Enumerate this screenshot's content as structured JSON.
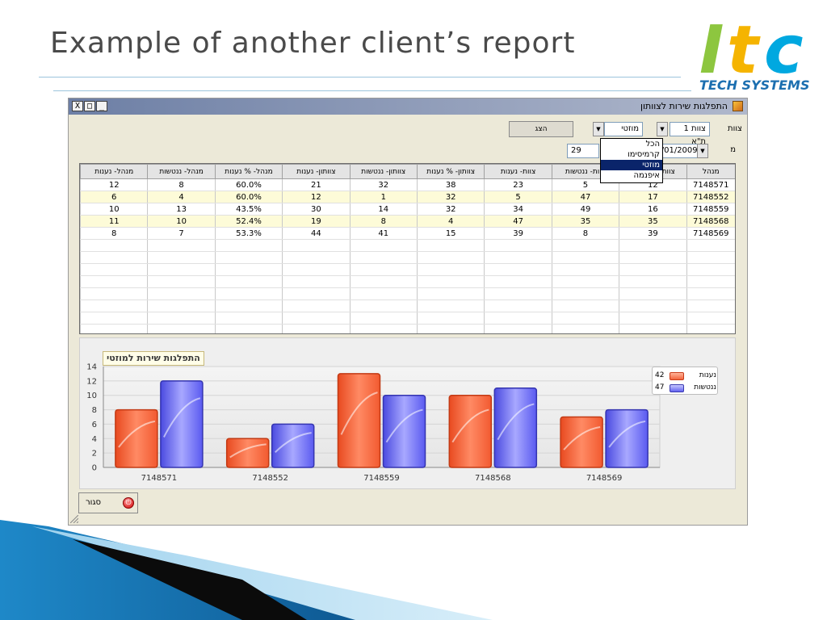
{
  "slide": {
    "title": "Example of another client’s report",
    "logo_text": "Itc",
    "logo_tagline": "TECH SYSTEMS"
  },
  "window": {
    "title": "התפלגות שירות לצוותון",
    "controls": {
      "close": "X",
      "maximize": "□",
      "minimize": "_"
    }
  },
  "filters": {
    "team_label": "צוות",
    "team_value": "צוות 1 ת\"א",
    "sub_value": "מוזטי",
    "show_button": "הצג",
    "month_label": "מ",
    "date_from": "29/01/2009",
    "date_to_partial": "29",
    "dropdown_options": [
      {
        "label": "הכל",
        "selected": false
      },
      {
        "label": "קרמיסימו",
        "selected": false
      },
      {
        "label": "מוזטי",
        "selected": true
      },
      {
        "label": "איפנמה",
        "selected": false
      }
    ]
  },
  "table": {
    "columns": [
      "מנהל",
      "צוות- % נענות",
      "צוות- ננטשות",
      "צוות- נענות",
      "צוותון- % נענות",
      "צוותון- ננטשות",
      "צוותון- נענות",
      "מנהל- % נענות",
      "מנהל- ננטשות",
      "מנהל- נענות"
    ],
    "rows": [
      [
        "7148571",
        "12",
        "5",
        "23",
        "38",
        "32",
        "21",
        "60.0%",
        "8",
        "12"
      ],
      [
        "7148552",
        "17",
        "47",
        "5",
        "32",
        "1",
        "12",
        "60.0%",
        "4",
        "6"
      ],
      [
        "7148559",
        "16",
        "49",
        "34",
        "32",
        "14",
        "30",
        "43.5%",
        "13",
        "10"
      ],
      [
        "7148568",
        "35",
        "35",
        "47",
        "4",
        "8",
        "19",
        "52.4%",
        "10",
        "11"
      ],
      [
        "7148569",
        "39",
        "8",
        "39",
        "15",
        "41",
        "44",
        "53.3%",
        "7",
        "8"
      ]
    ]
  },
  "chart_data": {
    "type": "bar",
    "title": "התפלגות שירות למוזטי",
    "categories": [
      "7148571",
      "7148552",
      "7148559",
      "7148568",
      "7148569"
    ],
    "series": [
      {
        "name": "נענות",
        "values": [
          8,
          4,
          13,
          10,
          7
        ],
        "color": "#f2643c",
        "legend_value": "42"
      },
      {
        "name": "ננטשות",
        "values": [
          12,
          6,
          10,
          11,
          8
        ],
        "color": "#6464f0",
        "legend_value": "47"
      }
    ],
    "yticks": [
      0,
      2,
      4,
      6,
      8,
      10,
      12,
      14
    ],
    "ylim": [
      0,
      14
    ],
    "grid": true,
    "legend_position": "top-right"
  },
  "footer": {
    "close_button": "סגור"
  }
}
